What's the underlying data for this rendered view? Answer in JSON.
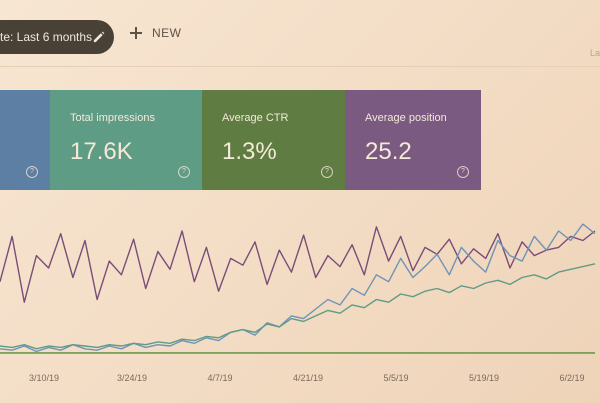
{
  "toolbar": {
    "date_filter_label": "te: Last 6 months",
    "new_label": "NEW",
    "corner_text": "La"
  },
  "metrics": [
    {
      "label": "",
      "value": "",
      "color": "#5c7fa3"
    },
    {
      "label": "Total impressions",
      "value": "17.6K",
      "color": "#5e9c85"
    },
    {
      "label": "Average CTR",
      "value": "1.3%",
      "color": "#5f7c42"
    },
    {
      "label": "Average position",
      "value": "25.2",
      "color": "#7b5a81"
    }
  ],
  "chart_data": {
    "type": "line",
    "x_tick_labels": [
      "3/10/19",
      "3/24/19",
      "4/7/19",
      "4/21/19",
      "5/5/19",
      "5/19/19",
      "6/2/19"
    ],
    "series": [
      {
        "color": "#7a4d79",
        "values": [
          55,
          88,
          40,
          74,
          65,
          90,
          58,
          85,
          42,
          70,
          60,
          86,
          50,
          77,
          64,
          92,
          55,
          80,
          48,
          72,
          67,
          84,
          53,
          78,
          62,
          89,
          58,
          74,
          66,
          82,
          60,
          95,
          70,
          88,
          63,
          80,
          75,
          86,
          68,
          79,
          72,
          90,
          65,
          84,
          74,
          78,
          80,
          88,
          85,
          92
        ]
      },
      {
        "color": "#6f93b8",
        "values": [
          6,
          5,
          8,
          4,
          7,
          5,
          9,
          6,
          5,
          8,
          6,
          10,
          7,
          9,
          8,
          12,
          10,
          14,
          12,
          18,
          20,
          16,
          25,
          22,
          30,
          28,
          35,
          42,
          38,
          50,
          45,
          60,
          55,
          72,
          58,
          66,
          75,
          60,
          80,
          70,
          62,
          85,
          74,
          70,
          88,
          78,
          92,
          85,
          97,
          90
        ]
      },
      {
        "color": "#5f9c85",
        "values": [
          8,
          7,
          9,
          6,
          8,
          7,
          9,
          8,
          7,
          9,
          8,
          10,
          9,
          11,
          10,
          13,
          12,
          15,
          14,
          18,
          20,
          18,
          24,
          22,
          28,
          26,
          30,
          34,
          32,
          38,
          36,
          42,
          40,
          46,
          44,
          48,
          50,
          47,
          52,
          50,
          54,
          56,
          53,
          58,
          60,
          57,
          62,
          64,
          66,
          68
        ]
      },
      {
        "color": "#6e9a4c",
        "values": [
          3,
          3,
          3,
          3,
          3,
          3,
          3,
          3,
          3,
          3,
          3,
          3,
          3,
          3,
          3,
          3,
          3,
          3,
          3,
          3,
          3,
          3,
          3,
          3,
          3,
          3,
          3,
          3,
          3,
          3,
          3,
          3,
          3,
          3,
          3,
          3,
          3,
          3,
          3,
          3,
          3,
          3,
          3,
          3,
          3,
          3,
          3,
          3,
          3,
          3
        ]
      }
    ]
  }
}
